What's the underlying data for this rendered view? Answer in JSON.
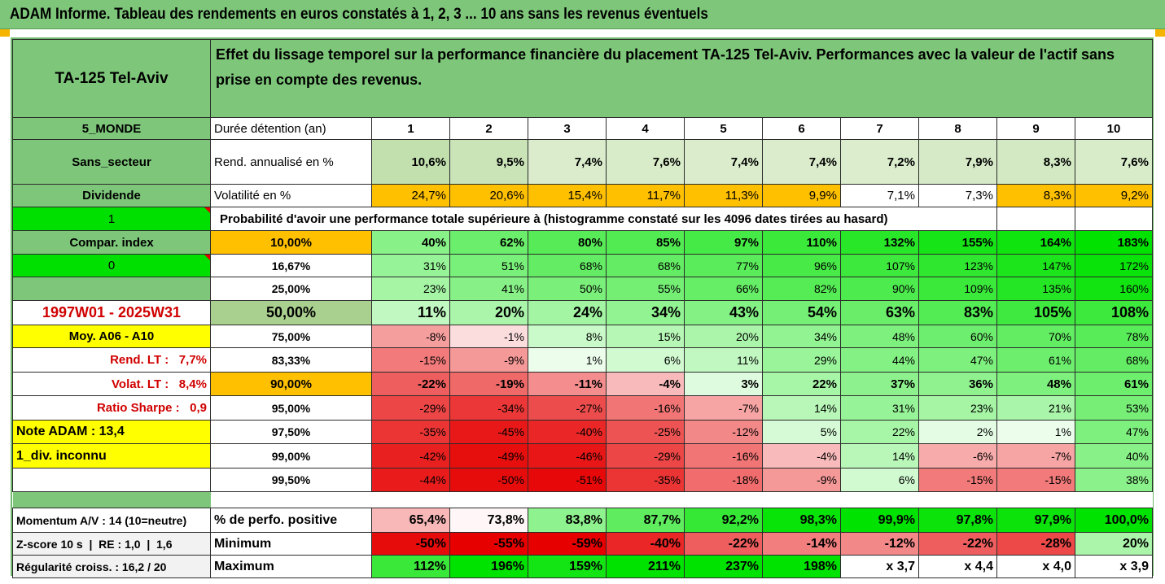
{
  "page_title": "ADAM Informe. Tableau des rendements en euros constatés à 1, 2, 3 ... 10 ans sans les revenus éventuels",
  "header": {
    "asset": "TA-125 Tel-Aviv",
    "description": "Effet du lissage temporel sur la performance financière du placement TA-125 Tel-Aviv. Performances avec la valeur de l'actif sans prise en compte des revenus."
  },
  "side": {
    "zone": "5_MONDE",
    "sector": "Sans_secteur",
    "dividend": "Dividende",
    "div_value": "1",
    "compar_index": "Compar. index",
    "compar_value": "0",
    "period": "1997W01 - 2025W31",
    "moy": "Moy. A06 - A10",
    "rend_lt": "Rend. LT :   7,7%",
    "volat_lt": "Volat. LT :   8,4%",
    "sharpe": "Ratio Sharpe :   0,9",
    "note": "Note ADAM : 13,4",
    "div_info": "1_div. inconnu",
    "momentum": "Momentum A/V : 14 (10=neutre)",
    "zscore": "Z-score 10 s  |  RE : 1,0  |  1,6",
    "regularite": "Régularité croiss. : 16,2 / 20"
  },
  "table": {
    "duration_label": "Durée détention (an)",
    "years": [
      "1",
      "2",
      "3",
      "4",
      "5",
      "6",
      "7",
      "8",
      "9",
      "10"
    ],
    "rend_label": "Rend. annualisé en %",
    "rend": [
      "10,6%",
      "9,5%",
      "7,4%",
      "7,6%",
      "7,4%",
      "7,4%",
      "7,2%",
      "7,9%",
      "8,3%",
      "7,6%"
    ],
    "vol_label": "Volatilité en %",
    "vol": [
      "24,7%",
      "20,6%",
      "15,4%",
      "11,7%",
      "11,3%",
      "9,9%",
      "7,1%",
      "7,3%",
      "8,3%",
      "9,2%"
    ],
    "prob_title": "Probabilité d'avoir une performance totale supérieure à (histogramme constaté sur les 4096 dates tirées au hasard)",
    "quantiles": [
      {
        "p": "10,00%",
        "v": [
          "40%",
          "62%",
          "80%",
          "85%",
          "97%",
          "110%",
          "132%",
          "155%",
          "164%",
          "183%"
        ]
      },
      {
        "p": "16,67%",
        "v": [
          "31%",
          "51%",
          "68%",
          "68%",
          "77%",
          "96%",
          "107%",
          "123%",
          "147%",
          "172%"
        ]
      },
      {
        "p": "25,00%",
        "v": [
          "23%",
          "41%",
          "50%",
          "55%",
          "66%",
          "82%",
          "90%",
          "109%",
          "135%",
          "160%"
        ]
      },
      {
        "p": "50,00%",
        "v": [
          "11%",
          "20%",
          "24%",
          "34%",
          "43%",
          "54%",
          "63%",
          "83%",
          "105%",
          "108%"
        ]
      },
      {
        "p": "75,00%",
        "v": [
          "-8%",
          "-1%",
          "8%",
          "15%",
          "20%",
          "34%",
          "48%",
          "60%",
          "70%",
          "78%"
        ]
      },
      {
        "p": "83,33%",
        "v": [
          "-15%",
          "-9%",
          "1%",
          "6%",
          "11%",
          "29%",
          "44%",
          "47%",
          "61%",
          "68%"
        ]
      },
      {
        "p": "90,00%",
        "v": [
          "-22%",
          "-19%",
          "-11%",
          "-4%",
          "3%",
          "22%",
          "37%",
          "36%",
          "48%",
          "61%"
        ]
      },
      {
        "p": "95,00%",
        "v": [
          "-29%",
          "-34%",
          "-27%",
          "-16%",
          "-7%",
          "14%",
          "31%",
          "23%",
          "21%",
          "53%"
        ]
      },
      {
        "p": "97,50%",
        "v": [
          "-35%",
          "-45%",
          "-40%",
          "-25%",
          "-12%",
          "5%",
          "22%",
          "2%",
          "1%",
          "47%"
        ]
      },
      {
        "p": "99,00%",
        "v": [
          "-42%",
          "-49%",
          "-46%",
          "-29%",
          "-16%",
          "-4%",
          "14%",
          "-6%",
          "-7%",
          "40%"
        ]
      },
      {
        "p": "99,50%",
        "v": [
          "-44%",
          "-50%",
          "-51%",
          "-35%",
          "-18%",
          "-9%",
          "6%",
          "-15%",
          "-15%",
          "38%"
        ]
      }
    ],
    "pos_label": "% de perfo. positive",
    "pos": [
      "65,4%",
      "73,8%",
      "83,8%",
      "87,7%",
      "92,2%",
      "98,3%",
      "99,9%",
      "97,8%",
      "97,9%",
      "100,0%"
    ],
    "min_label": "Minimum",
    "min": [
      "-50%",
      "-55%",
      "-59%",
      "-40%",
      "-22%",
      "-14%",
      "-12%",
      "-22%",
      "-28%",
      "20%"
    ],
    "max_label": "Maximum",
    "max": [
      "112%",
      "196%",
      "159%",
      "211%",
      "237%",
      "198%",
      "x 3,7",
      "x 4,4",
      "x 4,0",
      "x 3,9"
    ]
  },
  "colors": {
    "header_green": "#7ec77a",
    "orange": "#ffc000",
    "yellow": "#ffff00",
    "bright_green": "#00e000",
    "label_red": "#d00000"
  }
}
